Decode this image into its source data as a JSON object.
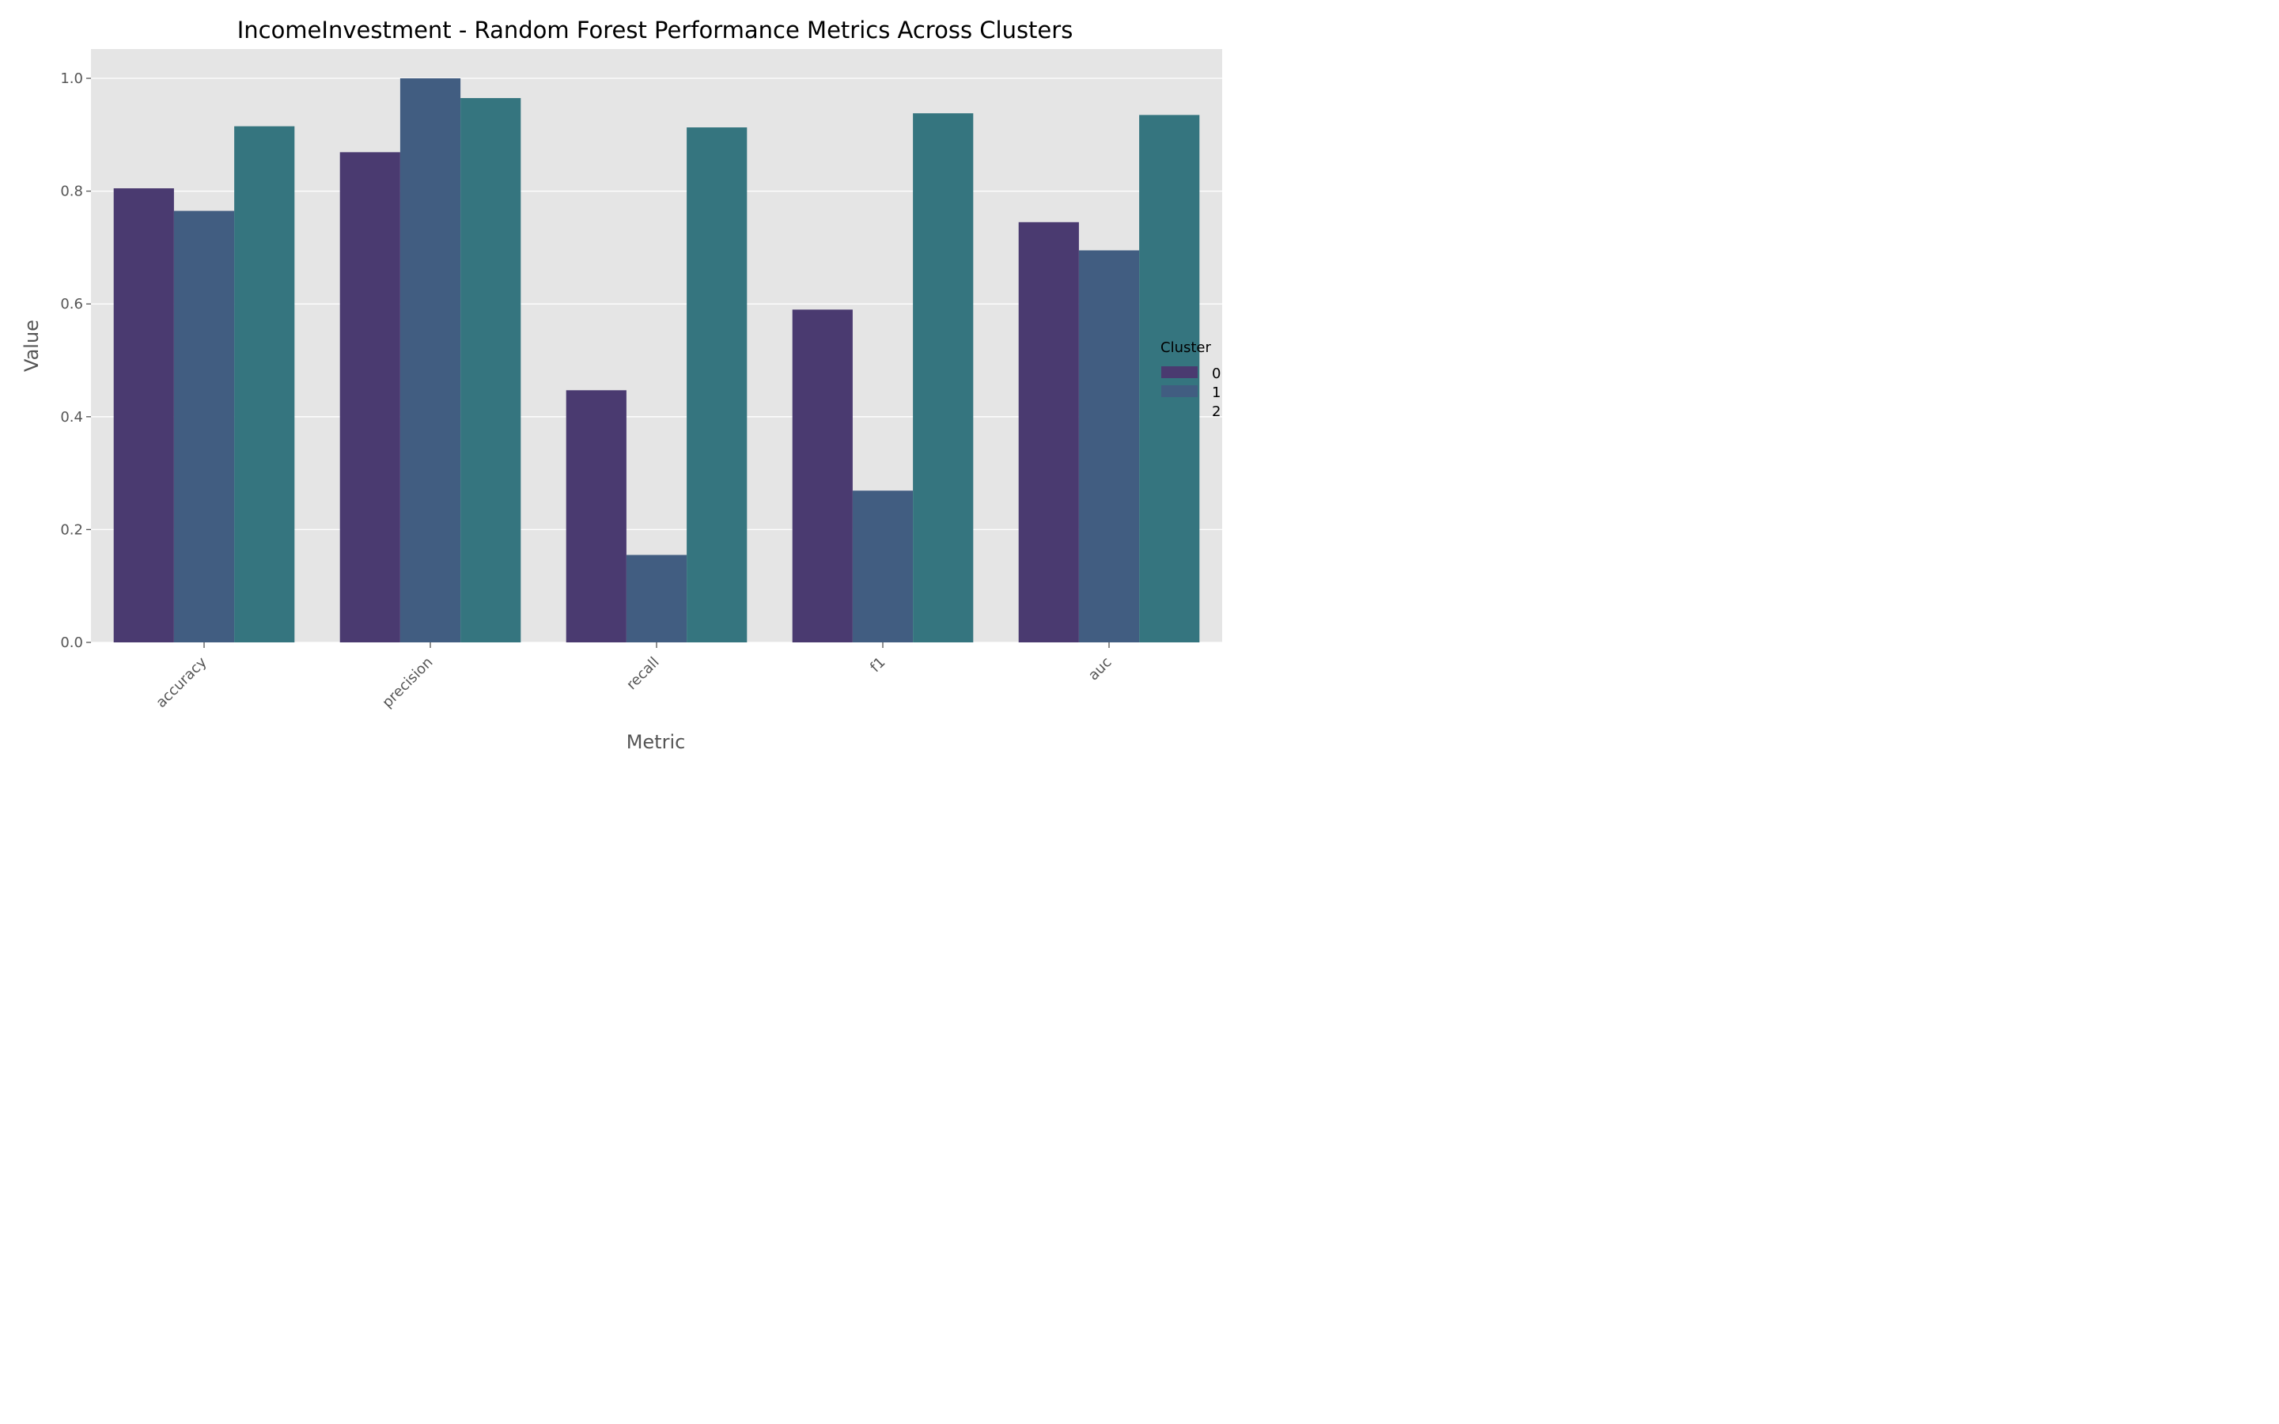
{
  "chart_data": {
    "type": "bar",
    "title": "IncomeInvestment - Random Forest Performance Metrics Across Clusters",
    "xlabel": "Metric",
    "ylabel": "Value",
    "categories": [
      "accuracy",
      "precision",
      "recall",
      "f1",
      "auc"
    ],
    "ylim": [
      0,
      1.05
    ],
    "yticks": [
      "0.0",
      "0.2",
      "0.4",
      "0.6",
      "0.8",
      "1.0"
    ],
    "grid": true,
    "legend": {
      "title": "Cluster",
      "placement": "right"
    },
    "series": [
      {
        "name": "0",
        "color": "#4a3a70",
        "values": [
          0.805,
          0.869,
          0.447,
          0.59,
          0.745
        ]
      },
      {
        "name": "1",
        "color": "#415d81",
        "values": [
          0.765,
          1.0,
          0.155,
          0.269,
          0.695
        ]
      },
      {
        "name": "2",
        "color": "#35757f",
        "values": [
          0.915,
          0.965,
          0.913,
          0.938,
          0.935
        ]
      }
    ],
    "colors": {
      "plot_background": "#e5e5e5",
      "grid": "#ffffff"
    }
  }
}
